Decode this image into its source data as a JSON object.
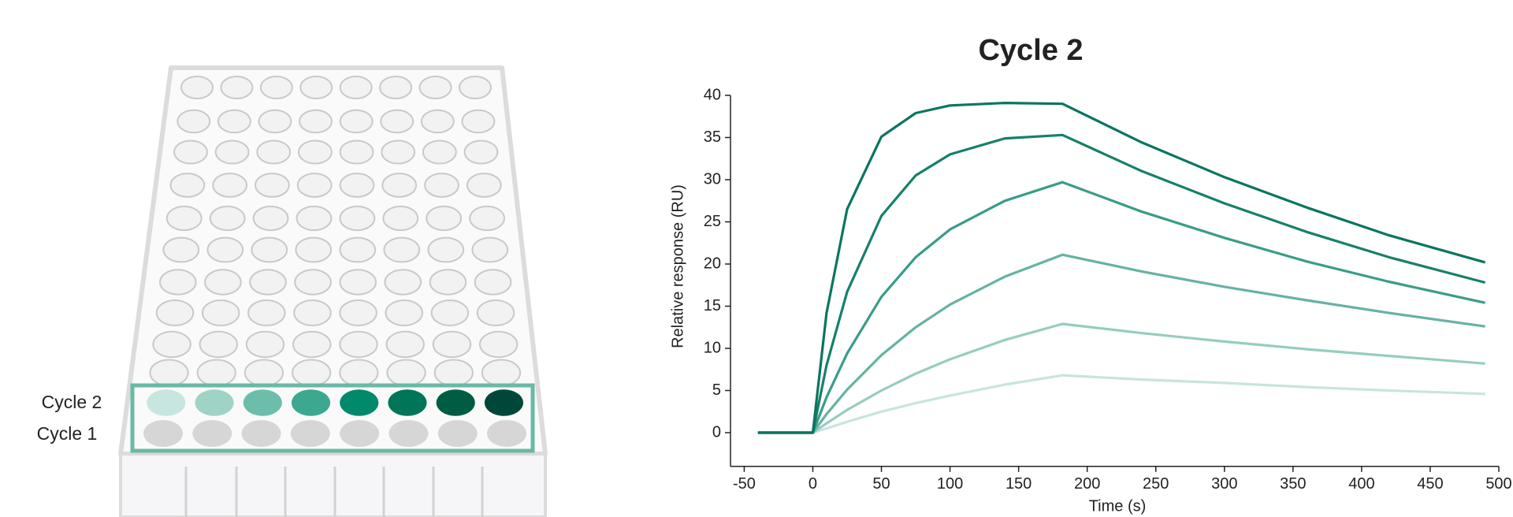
{
  "plate": {
    "row_labels": [
      "Cycle 2",
      "Cycle 1"
    ],
    "cycle2_well_colors": [
      "#c7e6df",
      "#9ed3c6",
      "#6dbdab",
      "#3ba88f",
      "#00896b",
      "#007558",
      "#005c43",
      "#00473a"
    ],
    "cycle1_well_color": "#d6d6d6",
    "highlight_color": "#6bb8a6"
  },
  "chart_data": {
    "type": "line",
    "title": "Cycle 2",
    "xlabel": "Time (s)",
    "ylabel": "Relative response (RU)",
    "x": [
      -40,
      0,
      10,
      25,
      50,
      75,
      100,
      140,
      182,
      240,
      300,
      360,
      420,
      490
    ],
    "series": [
      {
        "color": "#0b7560",
        "values": [
          0,
          0,
          14.2,
          26.5,
          35.1,
          37.9,
          38.8,
          39.1,
          39.0,
          34.4,
          30.3,
          26.7,
          23.4,
          20.2
        ]
      },
      {
        "color": "#17806a",
        "values": [
          0,
          0,
          8.0,
          16.7,
          25.7,
          30.5,
          33.0,
          34.9,
          35.3,
          31.0,
          27.2,
          23.8,
          20.8,
          17.8
        ]
      },
      {
        "color": "#3a9c88",
        "values": [
          0,
          0,
          4.2,
          9.4,
          16.1,
          20.8,
          24.1,
          27.5,
          29.7,
          26.2,
          23.1,
          20.3,
          17.9,
          15.4
        ]
      },
      {
        "color": "#66b2a3",
        "values": [
          0,
          0,
          2.2,
          5.1,
          9.2,
          12.5,
          15.2,
          18.5,
          21.1,
          19.1,
          17.3,
          15.7,
          14.2,
          12.6
        ]
      },
      {
        "color": "#97ccc0",
        "values": [
          0,
          0,
          1.1,
          2.7,
          5.0,
          7.0,
          8.7,
          11.0,
          12.9,
          11.8,
          10.8,
          9.9,
          9.1,
          8.2
        ]
      },
      {
        "color": "#c8e4dd",
        "values": [
          0,
          0,
          0.5,
          1.3,
          2.5,
          3.5,
          4.4,
          5.7,
          6.8,
          6.3,
          5.9,
          5.4,
          5.0,
          4.6
        ]
      }
    ],
    "xlim": [
      -60,
      500
    ],
    "xticks": [
      -50,
      0,
      50,
      100,
      150,
      200,
      250,
      300,
      350,
      400,
      450,
      500
    ],
    "ylim": [
      -4,
      40
    ],
    "yticks": [
      0,
      5,
      10,
      15,
      20,
      25,
      30,
      35,
      40
    ]
  }
}
